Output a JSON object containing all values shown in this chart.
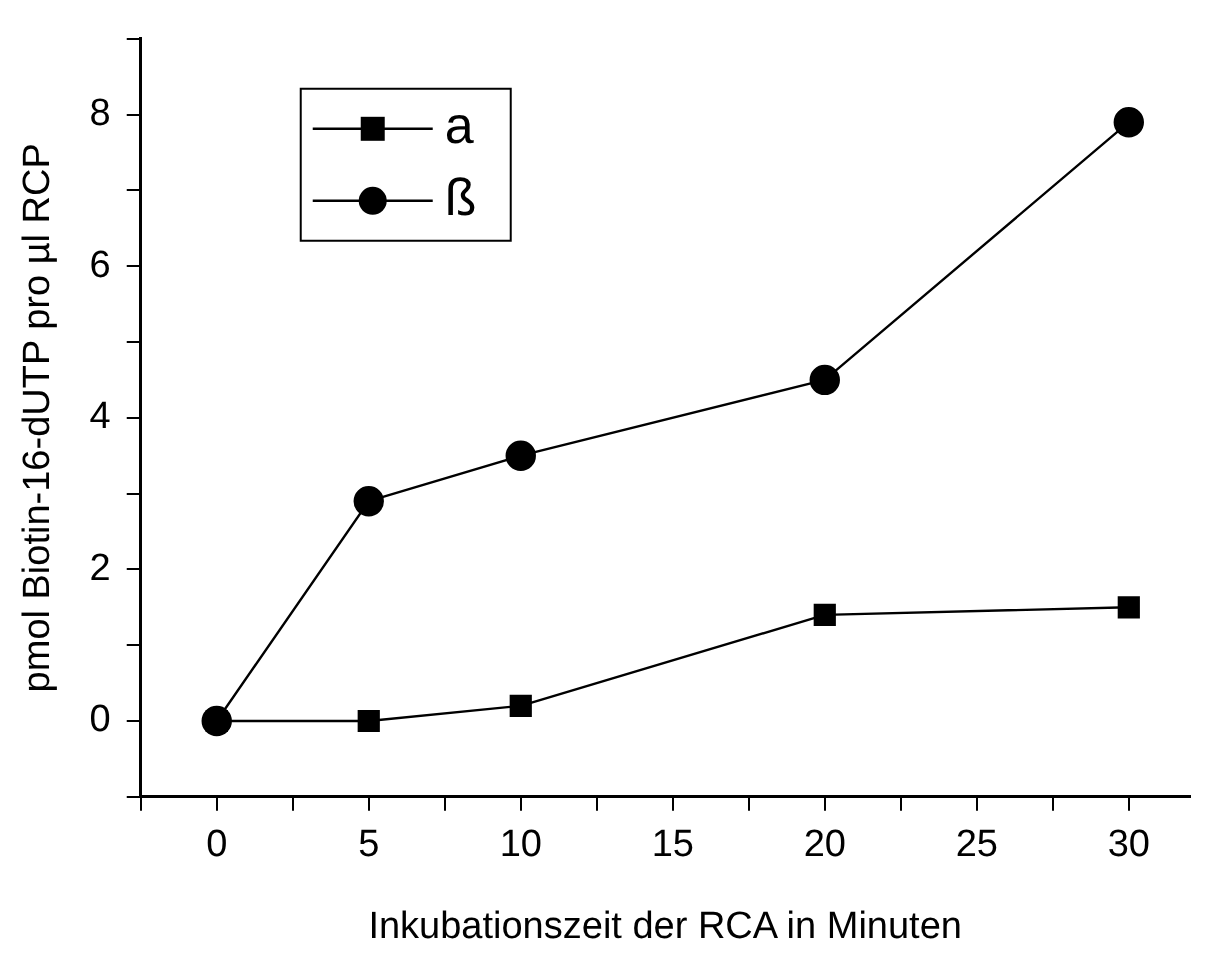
{
  "chart_data": {
    "type": "line",
    "xlabel": "Inkubationszeit der RCA in Minuten",
    "ylabel": "pmol Biotin-16-dUTP pro µl RCP",
    "x": [
      0,
      5,
      10,
      20,
      30
    ],
    "series": [
      {
        "name": "a",
        "color": "#000000",
        "marker": "square",
        "values": [
          0,
          0,
          0.2,
          1.4,
          1.5
        ]
      },
      {
        "name": "ß",
        "color": "#000000",
        "marker": "circle",
        "values": [
          0,
          2.9,
          3.5,
          4.5,
          7.9
        ]
      }
    ],
    "xlim": [
      -2.5,
      32
    ],
    "xticks": [
      {
        "value": -2.5,
        "label": null
      },
      0,
      {
        "value": 2.5,
        "label": null
      },
      5,
      {
        "value": 7.5,
        "label": null
      },
      10,
      {
        "value": 12.5,
        "label": null
      },
      15,
      {
        "value": 17.5,
        "label": null
      },
      20,
      {
        "value": 22.5,
        "label": null
      },
      25,
      {
        "value": 27.5,
        "label": null
      },
      30
    ],
    "ylim": [
      -1,
      9
    ],
    "yticks": [
      {
        "value": -1,
        "label": null
      },
      0,
      {
        "value": 1,
        "label": null
      },
      2,
      {
        "value": 3,
        "label": null
      },
      4,
      {
        "value": 5,
        "label": null
      },
      6,
      {
        "value": 7,
        "label": null
      },
      8,
      {
        "value": 9,
        "label": null
      }
    ],
    "grid": false,
    "legend": "top left",
    "line_style": "solid"
  }
}
